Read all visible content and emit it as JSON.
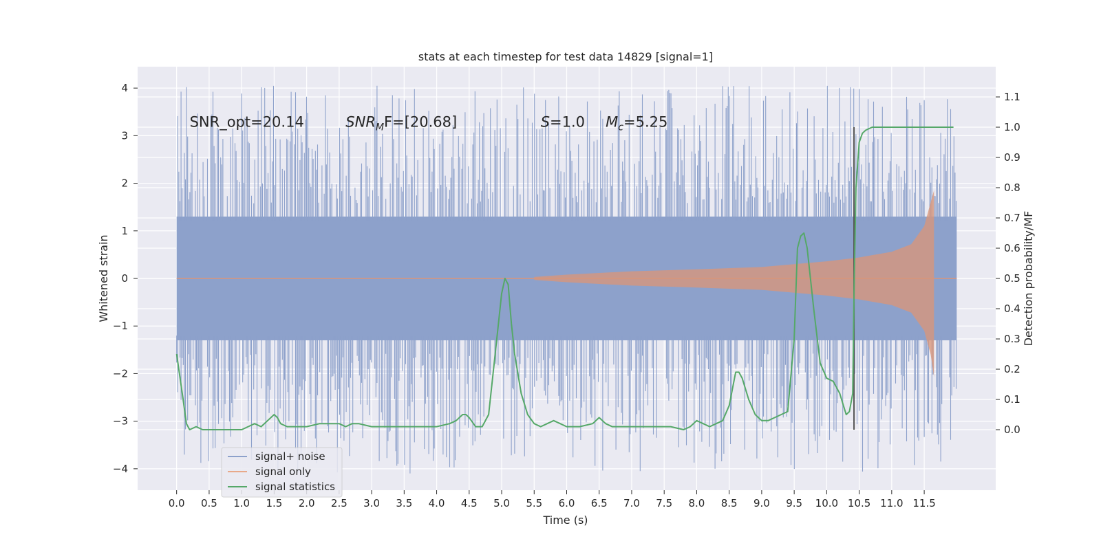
{
  "chart_data": {
    "type": "line",
    "title": "stats at each timestep for test data 14829 [signal=1]",
    "xlabel": "Time (s)",
    "ylabel": "Whitened strain",
    "y2label": "Detection probability/MF",
    "xlim": [
      -0.6,
      12.6
    ],
    "ylim": [
      -4.45,
      4.45
    ],
    "y2lim": [
      -0.2,
      1.2
    ],
    "x_ticks": [
      "0.0",
      "0.5",
      "1.0",
      "1.5",
      "2.0",
      "2.5",
      "3.0",
      "3.5",
      "4.0",
      "4.5",
      "5.0",
      "5.5",
      "6.0",
      "6.5",
      "7.0",
      "7.5",
      "8.0",
      "8.5",
      "9.0",
      "9.5",
      "10.0",
      "10.5",
      "11.0",
      "11.5"
    ],
    "y_ticks": [
      "4",
      "3",
      "2",
      "1",
      "0",
      "−1",
      "−2",
      "−3",
      "−4"
    ],
    "y2_ticks": [
      "1.1",
      "1.0",
      "0.9",
      "0.8",
      "0.7",
      "0.6",
      "0.5",
      "0.4",
      "0.3",
      "0.2",
      "0.1",
      "0.0"
    ],
    "grid": true,
    "legend_position": "bottom-left",
    "colors": {
      "noise": "#8da1cb",
      "signal": "#dd8452",
      "stat": "#55a868",
      "marker": "#555555",
      "plot_bg": "#eaeaf2"
    },
    "annotations": [
      {
        "parts": [
          "SNR_opt=20.14"
        ],
        "x": 0.2,
        "y": 3.3
      },
      {
        "parts": [
          "SNR",
          "M",
          "F=[20.68]"
        ],
        "x": 2.6,
        "y": 3.3
      },
      {
        "parts": [
          "S",
          "=1.0"
        ],
        "x": 5.6,
        "y": 3.3
      },
      {
        "parts": [
          "M",
          "c",
          "=5.25"
        ],
        "x": 6.6,
        "y": 3.3
      }
    ],
    "series": [
      {
        "name": "signal+ noise",
        "axis": "left",
        "description_level": "band",
        "x_range": [
          0.0,
          12.0
        ],
        "core_amplitude": 1.3,
        "spike_max": 4.05,
        "spike_min": -4.1
      },
      {
        "name": "signal only",
        "axis": "left",
        "x": [
          5.5,
          6.0,
          7.0,
          8.0,
          9.0,
          9.5,
          10.0,
          10.5,
          11.0,
          11.3,
          11.5,
          11.6,
          11.65
        ],
        "envelope": [
          0.03,
          0.08,
          0.15,
          0.19,
          0.24,
          0.3,
          0.36,
          0.44,
          0.56,
          0.72,
          1.1,
          1.6,
          1.85
        ]
      },
      {
        "name": "signal statistics",
        "axis": "right",
        "x": [
          0.0,
          0.1,
          0.15,
          0.2,
          0.3,
          0.4,
          0.5,
          0.6,
          0.8,
          1.0,
          1.1,
          1.2,
          1.3,
          1.4,
          1.5,
          1.55,
          1.6,
          1.7,
          1.8,
          2.0,
          2.2,
          2.4,
          2.5,
          2.6,
          2.7,
          2.8,
          3.0,
          3.2,
          3.4,
          3.6,
          3.8,
          4.0,
          4.2,
          4.3,
          4.4,
          4.45,
          4.5,
          4.6,
          4.7,
          4.8,
          4.9,
          5.0,
          5.05,
          5.1,
          5.15,
          5.2,
          5.3,
          5.4,
          5.5,
          5.6,
          5.7,
          5.8,
          5.9,
          6.0,
          6.2,
          6.4,
          6.5,
          6.6,
          6.7,
          6.8,
          7.0,
          7.2,
          7.4,
          7.6,
          7.8,
          7.9,
          8.0,
          8.1,
          8.2,
          8.3,
          8.4,
          8.5,
          8.6,
          8.65,
          8.7,
          8.8,
          8.9,
          9.0,
          9.1,
          9.2,
          9.3,
          9.4,
          9.5,
          9.55,
          9.6,
          9.65,
          9.7,
          9.8,
          9.9,
          10.0,
          10.1,
          10.2,
          10.3,
          10.35,
          10.4,
          10.42,
          10.45,
          10.5,
          10.55,
          10.6,
          10.7,
          10.8,
          10.9,
          11.0,
          11.2,
          11.5,
          11.8,
          11.95
        ],
        "y": [
          0.25,
          0.1,
          0.02,
          0.0,
          0.01,
          0.0,
          0.0,
          0.0,
          0.0,
          0.0,
          0.01,
          0.02,
          0.01,
          0.03,
          0.05,
          0.04,
          0.02,
          0.01,
          0.01,
          0.01,
          0.02,
          0.02,
          0.02,
          0.01,
          0.02,
          0.02,
          0.01,
          0.01,
          0.01,
          0.01,
          0.01,
          0.01,
          0.02,
          0.03,
          0.05,
          0.05,
          0.04,
          0.01,
          0.01,
          0.05,
          0.25,
          0.45,
          0.5,
          0.48,
          0.35,
          0.25,
          0.12,
          0.05,
          0.02,
          0.01,
          0.02,
          0.03,
          0.02,
          0.01,
          0.01,
          0.02,
          0.04,
          0.02,
          0.01,
          0.01,
          0.01,
          0.01,
          0.01,
          0.01,
          0.0,
          0.01,
          0.03,
          0.02,
          0.01,
          0.02,
          0.03,
          0.08,
          0.19,
          0.19,
          0.17,
          0.1,
          0.05,
          0.03,
          0.03,
          0.04,
          0.05,
          0.06,
          0.3,
          0.6,
          0.64,
          0.65,
          0.6,
          0.4,
          0.22,
          0.17,
          0.16,
          0.12,
          0.05,
          0.06,
          0.12,
          0.45,
          0.8,
          0.95,
          0.98,
          0.99,
          1.0,
          1.0,
          1.0,
          1.0,
          1.0,
          1.0,
          1.0,
          1.0
        ]
      }
    ],
    "marker_line_x": 10.42
  }
}
